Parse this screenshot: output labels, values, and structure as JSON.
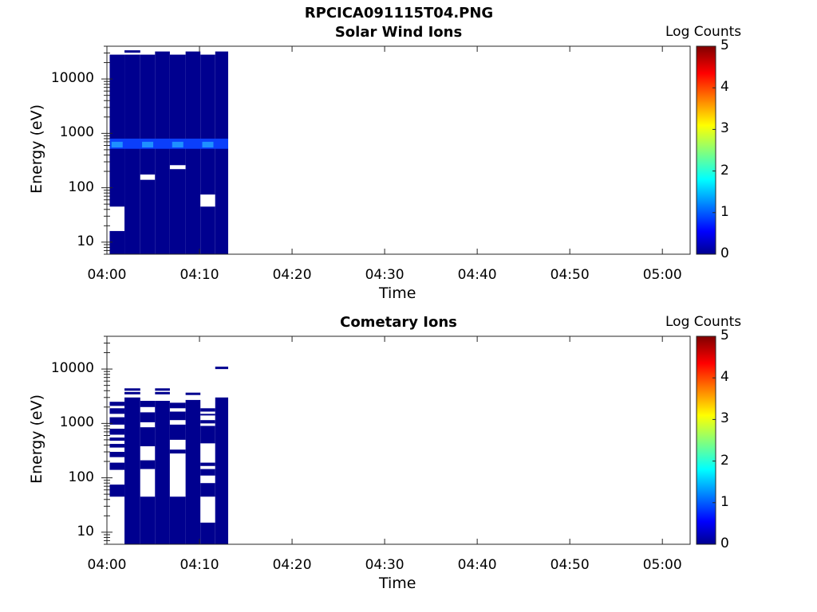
{
  "figure_title": "RPCICA091115T04.PNG",
  "colorbar": {
    "label": "Log Counts",
    "ticks": [
      "0",
      "1",
      "2",
      "3",
      "4",
      "5"
    ],
    "range": [
      0,
      5
    ]
  },
  "chart_data": [
    {
      "type": "heatmap",
      "title": "Solar Wind Ions",
      "xlabel": "Time",
      "ylabel": "Energy (eV)",
      "x_ticks": [
        "04:00",
        "04:10",
        "04:20",
        "04:30",
        "04:40",
        "04:50",
        "05:00"
      ],
      "y_ticks": [
        "10",
        "100",
        "1000",
        "10000"
      ],
      "y_scale": "log",
      "y_range_eV": [
        6,
        40000
      ],
      "x_range": [
        "04:00",
        "05:03"
      ],
      "data_time_range": [
        "04:00",
        "04:13"
      ],
      "colorbar_label": "Log Counts",
      "description_of_values": "Mostly ~0.1 log counts across all energies; enhanced band ~1.0-1.3 near 500-800 eV; white gaps (no data)",
      "segments": [
        {
          "t0": 0.3,
          "t1": 1.9,
          "top_eV": 28000,
          "gaps": [
            [
              16,
              45
            ]
          ]
        },
        {
          "t0": 1.9,
          "t1": 3.6,
          "top_eV": 28000,
          "gaps": [],
          "extra_line_eV": 32000
        },
        {
          "t0": 3.6,
          "t1": 5.2,
          "top_eV": 28000,
          "gaps": [
            [
              140,
              175
            ]
          ]
        },
        {
          "t0": 5.2,
          "t1": 6.8,
          "top_eV": 32000,
          "gaps": []
        },
        {
          "t0": 6.8,
          "t1": 8.5,
          "top_eV": 28000,
          "gaps": [
            [
              220,
              260
            ]
          ]
        },
        {
          "t0": 8.5,
          "t1": 10.1,
          "top_eV": 32000,
          "gaps": []
        },
        {
          "t0": 10.1,
          "t1": 11.7,
          "top_eV": 28000,
          "gaps": [
            [
              45,
              75
            ]
          ]
        },
        {
          "t0": 11.7,
          "t1": 13.1,
          "top_eV": 32000,
          "gaps": []
        }
      ],
      "enhanced_band": {
        "lo_eV": 520,
        "hi_eV": 800,
        "log_counts": 1.2
      }
    },
    {
      "type": "heatmap",
      "title": "Cometary Ions",
      "xlabel": "Time",
      "ylabel": "Energy (eV)",
      "x_ticks": [
        "04:00",
        "04:10",
        "04:20",
        "04:30",
        "04:40",
        "04:50",
        "05:00"
      ],
      "y_ticks": [
        "10",
        "100",
        "1000",
        "10000"
      ],
      "y_scale": "log",
      "y_range_eV": [
        6,
        40000
      ],
      "x_range": [
        "04:00",
        "05:03"
      ],
      "data_time_range": [
        "04:00",
        "04:13"
      ],
      "colorbar_label": "Log Counts",
      "description_of_values": "Sparse low counts (~0.1 log counts) with many white gaps",
      "segments": [
        {
          "t0": 0.3,
          "t1": 1.9,
          "top_eV": 2500,
          "bottom_eV": 45,
          "gaps": [
            [
              75,
              140
            ],
            [
              190,
              240
            ],
            [
              300,
              360
            ],
            [
              420,
              480
            ],
            [
              550,
              620
            ],
            [
              800,
              950
            ],
            [
              1300,
              1500
            ],
            [
              1900,
              2100
            ]
          ]
        },
        {
          "t0": 1.9,
          "t1": 3.6,
          "top_eV": 3000,
          "gaps": [],
          "extra_lines_eV": [
            3600,
            4200
          ]
        },
        {
          "t0": 3.6,
          "t1": 5.2,
          "top_eV": 2600,
          "gaps": [
            [
              45,
              145
            ],
            [
              210,
              380
            ],
            [
              850,
              1050
            ],
            [
              1600,
              2000
            ]
          ]
        },
        {
          "t0": 5.2,
          "t1": 6.8,
          "top_eV": 2600,
          "gaps": [],
          "extra_lines_eV": [
            3600,
            4200
          ]
        },
        {
          "t0": 6.8,
          "t1": 8.5,
          "top_eV": 2400,
          "gaps": [
            [
              45,
              280
            ],
            [
              330,
              500
            ],
            [
              950,
              1150
            ],
            [
              1650,
              1900
            ]
          ]
        },
        {
          "t0": 8.5,
          "t1": 10.1,
          "top_eV": 2700,
          "gaps": [],
          "extra_lines_eV": [
            3500
          ]
        },
        {
          "t0": 10.1,
          "t1": 11.7,
          "top_eV": 1900,
          "gaps": [
            [
              15,
              45
            ],
            [
              80,
              110
            ],
            [
              145,
              165
            ],
            [
              190,
              430
            ],
            [
              900,
              1000
            ],
            [
              1150,
              1400
            ],
            [
              1500,
              1650
            ]
          ]
        },
        {
          "t0": 11.7,
          "t1": 13.1,
          "top_eV": 3000,
          "gaps": [],
          "extra_lines_eV": [
            10500
          ]
        }
      ]
    }
  ]
}
